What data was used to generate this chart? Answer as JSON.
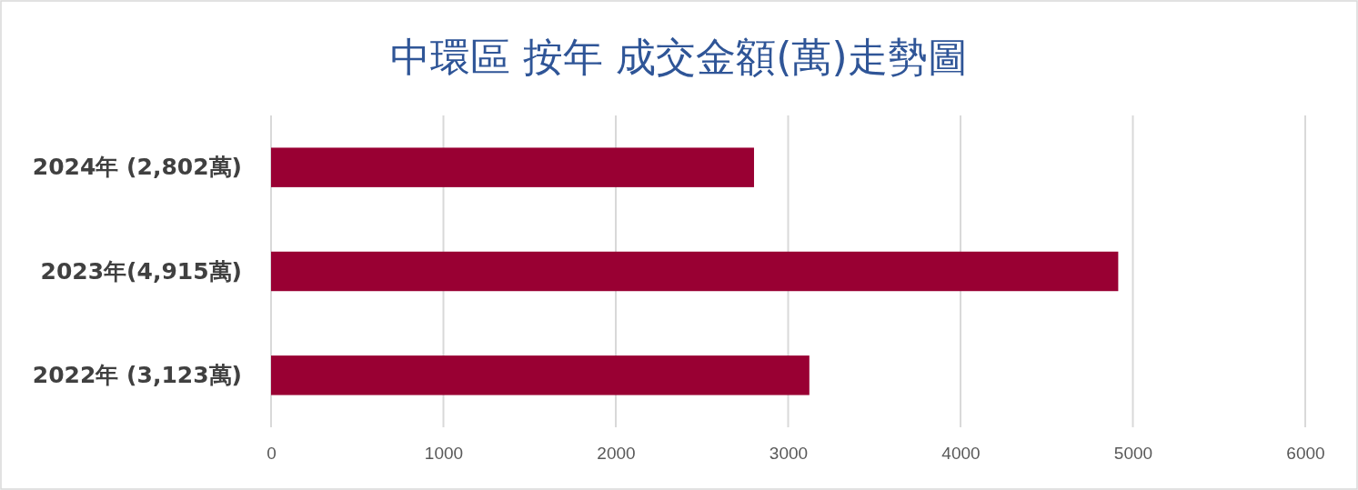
{
  "chart_data": {
    "type": "bar",
    "orientation": "horizontal",
    "title": "中環區  按年 成交金額(萬)走勢圖",
    "categories": [
      "2024年 (2,802萬)",
      "2023年(4,915萬)",
      "2022年 (3,123萬)"
    ],
    "series": [
      {
        "color": "#990033",
        "values": [
          2802,
          4915,
          3123
        ]
      }
    ],
    "xlim": [
      0,
      6000
    ],
    "xticks": [
      0,
      1000,
      2000,
      3000,
      4000,
      5000,
      6000
    ],
    "grid": "x"
  }
}
